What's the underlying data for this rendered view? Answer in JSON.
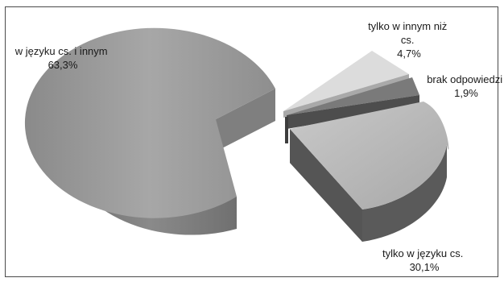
{
  "chart_data": {
    "type": "pie",
    "style": "3d-exploded",
    "grid": false,
    "legend": "none",
    "slices": [
      {
        "name": "w języku cs. i innym",
        "value": 63.3,
        "value_label": "63,3%",
        "top_color": "#9a9a9a",
        "side_color": "#6f6f6f"
      },
      {
        "name": "tylko w innym niż cs.",
        "value": 4.7,
        "value_label": "4,7%",
        "top_color": "#dcdcdc",
        "side_color": "#a9a9a9"
      },
      {
        "name": "brak odpowiedzi",
        "value": 1.9,
        "value_label": "1,9%",
        "top_color": "#7a7a7a",
        "side_color": "#4d4d4d"
      },
      {
        "name": "tylko w języku cs.",
        "value": 30.1,
        "value_label": "30,1%",
        "top_color": "#b9b9b9",
        "side_color": "#555555"
      }
    ],
    "labels": [
      {
        "lines": [
          "w języku cs. i innym",
          "63,3%"
        ]
      },
      {
        "lines": [
          "tylko w innym niż",
          "cs.",
          "4,7%"
        ]
      },
      {
        "lines": [
          "brak odpowiedzi",
          "1,9%"
        ]
      },
      {
        "lines": [
          "tylko w języku cs.",
          "30,1%"
        ]
      }
    ]
  }
}
